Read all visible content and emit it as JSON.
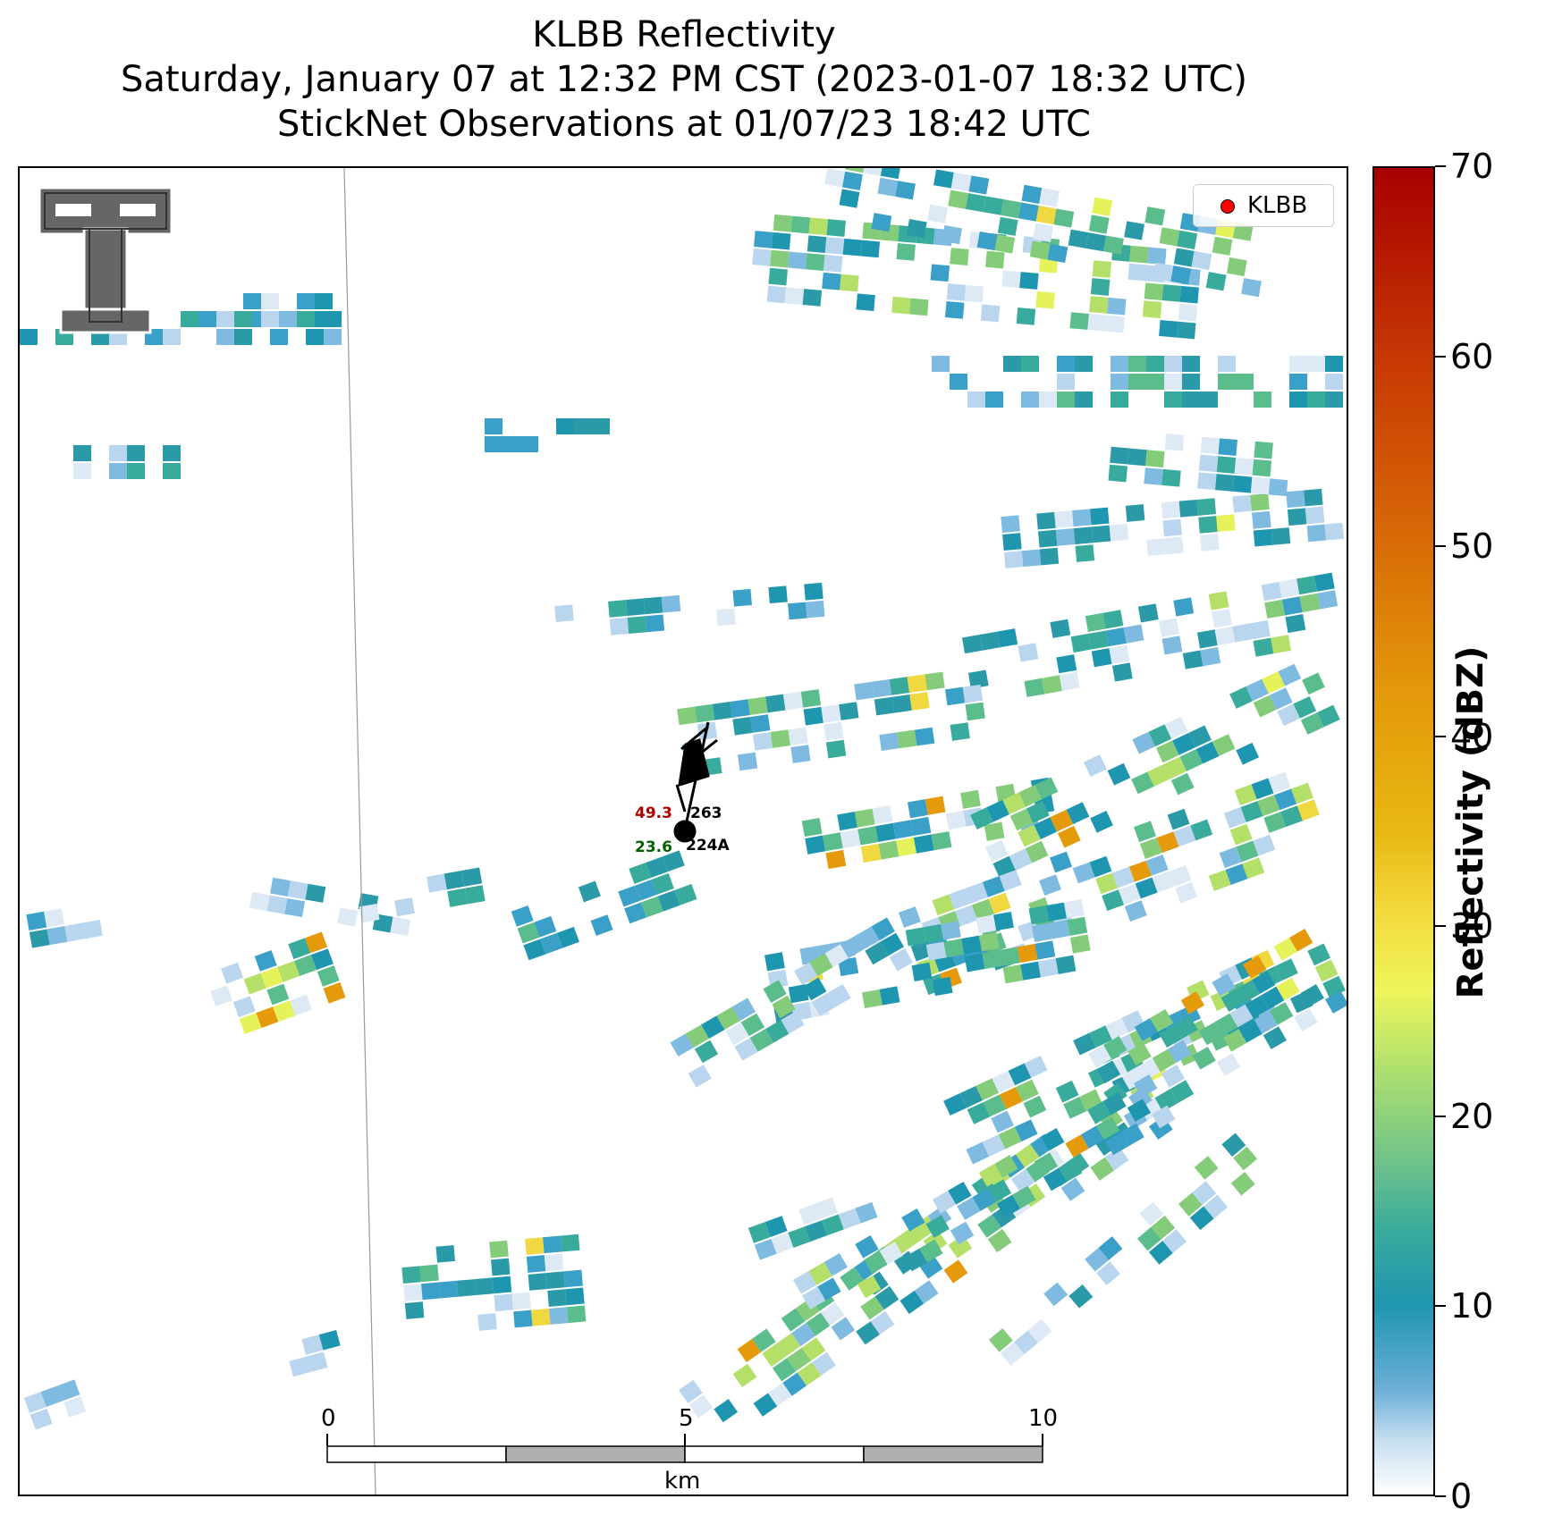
{
  "title": {
    "line1": "KLBB Reflectivity",
    "line2": "Saturday, January 07 at 12:32 PM CST (2023-01-07 18:32 UTC)",
    "line3": "StickNet Observations at 01/07/23 18:42 UTC"
  },
  "legend": {
    "label": "KLBB",
    "marker_color": "#ff0000"
  },
  "colorbar": {
    "title": "Reflectivity (dBZ)",
    "ticks": [
      "0",
      "10",
      "20",
      "30",
      "40",
      "50",
      "60",
      "70"
    ],
    "range": [
      0,
      70
    ]
  },
  "scale_bar": {
    "unit": "km",
    "ticks": [
      "0",
      "5",
      "10"
    ]
  },
  "stations": [
    {
      "id": "263",
      "value": "49.3",
      "value_color": "#b00000"
    },
    {
      "id": "224A",
      "value": "23.6",
      "value_color": "#006000"
    }
  ],
  "logo": {
    "name": "Texas Tech Double T"
  },
  "colors": {
    "echo_teal": "#1f96b0",
    "echo_green": "#6ec28a",
    "echo_yellow": "#eef55a",
    "echo_orange": "#e49a0a",
    "echo_light": "#c8dff0"
  }
}
